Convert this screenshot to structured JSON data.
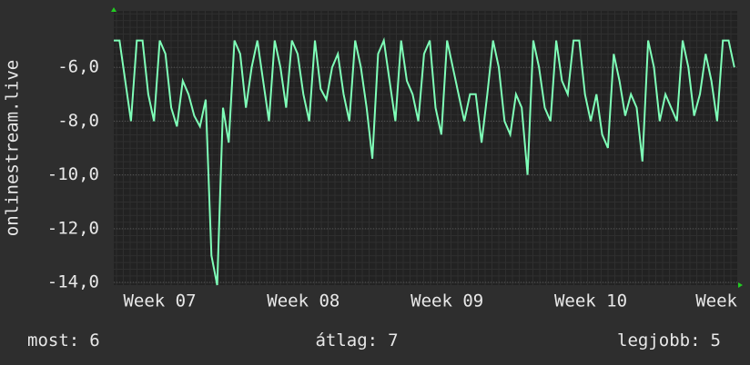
{
  "chart_data": {
    "type": "line",
    "y_label": "onlinestream.live",
    "x": [
      7.18,
      7.22,
      7.26,
      7.3,
      7.34,
      7.38,
      7.42,
      7.46,
      7.5,
      7.54,
      7.58,
      7.62,
      7.66,
      7.7,
      7.74,
      7.78,
      7.82,
      7.86,
      7.9,
      7.94,
      7.98,
      8.02,
      8.06,
      8.1,
      8.14,
      8.18,
      8.22,
      8.26,
      8.3,
      8.34,
      8.38,
      8.42,
      8.46,
      8.5,
      8.54,
      8.58,
      8.62,
      8.66,
      8.7,
      8.74,
      8.78,
      8.82,
      8.86,
      8.9,
      8.94,
      8.98,
      9.02,
      9.06,
      9.1,
      9.14,
      9.18,
      9.22,
      9.26,
      9.3,
      9.34,
      9.38,
      9.42,
      9.46,
      9.5,
      9.54,
      9.58,
      9.62,
      9.66,
      9.7,
      9.74,
      9.78,
      9.82,
      9.86,
      9.9,
      9.94,
      9.98,
      10.02,
      10.06,
      10.1,
      10.14,
      10.18,
      10.22,
      10.26,
      10.3,
      10.34,
      10.38,
      10.42,
      10.46,
      10.5,
      10.54,
      10.58,
      10.62,
      10.66,
      10.7,
      10.74,
      10.78,
      10.82,
      10.86,
      10.9,
      10.94,
      10.98,
      11.02,
      11.06,
      11.1,
      11.14,
      11.18,
      11.22,
      11.26,
      11.3,
      11.34,
      11.38,
      11.42,
      11.46,
      11.5
    ],
    "series": [
      {
        "color": "#7fffb8",
        "values": [
          -5,
          -5,
          -6.5,
          -8,
          -5,
          -5,
          -7,
          -8,
          -5,
          -5.5,
          -7.5,
          -8.2,
          -6.5,
          -7,
          -7.8,
          -8.2,
          -7.2,
          -13,
          -14.1,
          -7.5,
          -8.8,
          -5,
          -5.5,
          -7.5,
          -6,
          -5,
          -6.5,
          -8,
          -5,
          -6,
          -7.5,
          -5,
          -5.5,
          -7,
          -8,
          -5,
          -6.8,
          -7.2,
          -6,
          -5.5,
          -7,
          -8,
          -5,
          -6,
          -7.5,
          -9.4,
          -5.5,
          -5,
          -6.5,
          -8,
          -5,
          -6.5,
          -7,
          -8,
          -5.5,
          -5,
          -7.5,
          -8.5,
          -5,
          -6,
          -7,
          -8,
          -7,
          -7,
          -8.8,
          -7,
          -5,
          -6,
          -8,
          -8.5,
          -7,
          -7.5,
          -10,
          -5,
          -6,
          -7.5,
          -8,
          -5,
          -6.5,
          -7,
          -5,
          -5,
          -7,
          -8,
          -7,
          -8.5,
          -9,
          -5.5,
          -6.5,
          -7.8,
          -7,
          -7.5,
          -9.5,
          -5,
          -6,
          -8,
          -7,
          -7.5,
          -8,
          -5,
          -6,
          -7.8,
          -7,
          -5.5,
          -6.5,
          -8,
          -5,
          -5,
          -6
        ]
      }
    ],
    "xlim": [
      7.18,
      11.52
    ],
    "xticks": [
      {
        "value": 7.5,
        "label": "Week 07"
      },
      {
        "value": 8.5,
        "label": "Week 08"
      },
      {
        "value": 9.5,
        "label": "Week 09"
      },
      {
        "value": 10.5,
        "label": "Week 10"
      },
      {
        "value": 11.5,
        "label": "Week"
      }
    ],
    "ylim": [
      -14.1,
      -3.9
    ],
    "yticks": [
      {
        "value": -6,
        "label": "-6,0"
      },
      {
        "value": -8,
        "label": "-8,0"
      },
      {
        "value": -10,
        "label": "-10,0"
      },
      {
        "value": -12,
        "label": "-12,0"
      },
      {
        "value": -14,
        "label": "-14,0"
      }
    ],
    "grid": true,
    "stats": [
      {
        "label": "most:",
        "value": 6
      },
      {
        "label": "átlag:",
        "value": 7
      },
      {
        "label": "legjobb:",
        "value": 5
      }
    ]
  }
}
